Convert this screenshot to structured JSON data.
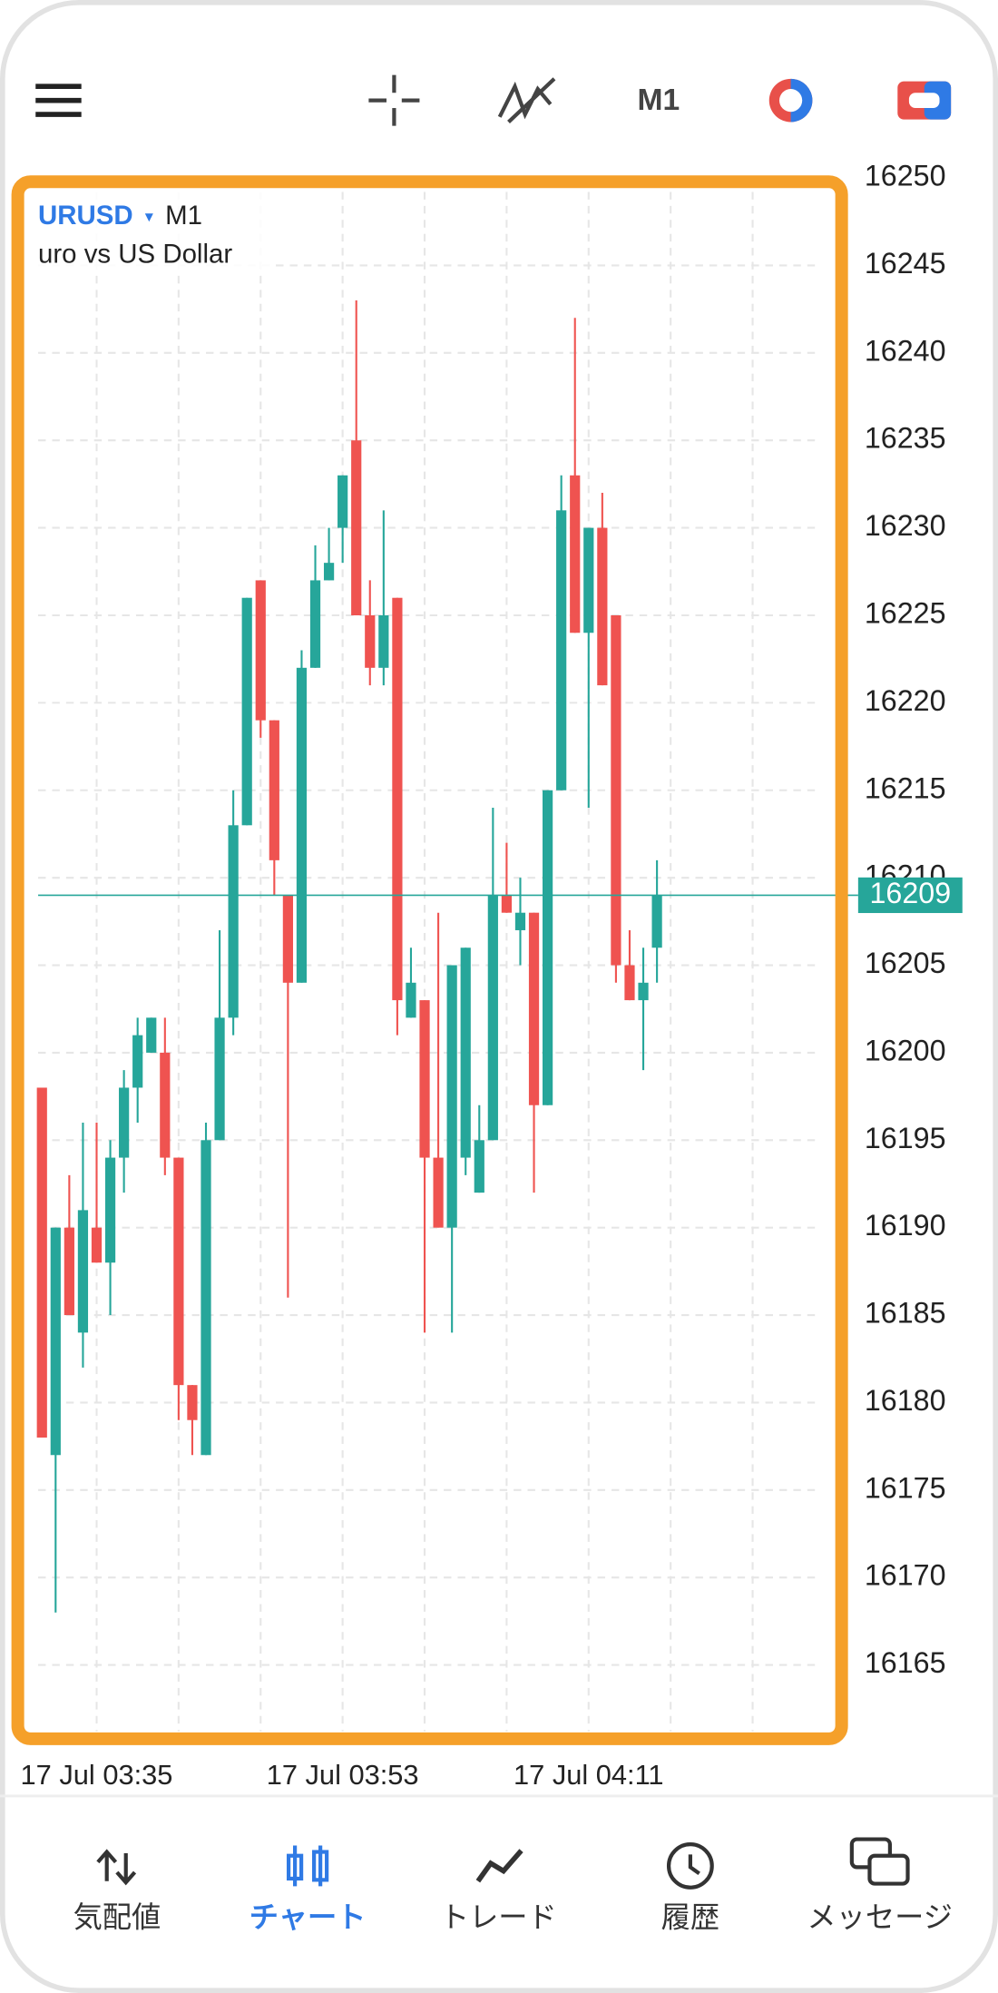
{
  "header": {
    "timeframe": "M1"
  },
  "chart_data": {
    "type": "candlestick",
    "symbol": "URUSD",
    "timeframe": "M1",
    "description": "uro vs US Dollar",
    "up_color": "#26a69a",
    "down_color": "#ef5350",
    "open": [
      16198,
      16177,
      16190,
      16184,
      16190,
      16188,
      16194,
      16198,
      16200,
      16200,
      16194,
      16181,
      16177,
      16195,
      16202,
      16213,
      16227,
      16219,
      16209,
      16204,
      16222,
      16227,
      16230,
      16235,
      16225,
      16222,
      16226,
      16202,
      16203,
      16194,
      16190,
      16194,
      16192,
      16195,
      16209,
      16207,
      16208,
      16197,
      16215,
      16233,
      16224,
      16230,
      16225,
      16205,
      16203,
      16206
    ],
    "high": [
      16198,
      16190,
      16193,
      16196,
      16196,
      16195,
      16199,
      16202,
      16202,
      16202,
      16194,
      16181,
      16196,
      16207,
      16215,
      16226,
      16227,
      16219,
      16209,
      16223,
      16229,
      16230,
      16233,
      16243,
      16227,
      16231,
      16226,
      16206,
      16203,
      16208,
      16205,
      16206,
      16197,
      16214,
      16212,
      16210,
      16208,
      16215,
      16233,
      16242,
      16230,
      16232,
      16225,
      16207,
      16206,
      16211
    ],
    "low": [
      16178,
      16168,
      16185,
      16182,
      16188,
      16185,
      16192,
      16196,
      16200,
      16193,
      16179,
      16177,
      16177,
      16195,
      16201,
      16213,
      16218,
      16209,
      16186,
      16204,
      16222,
      16227,
      16228,
      16225,
      16221,
      16221,
      16201,
      16202,
      16184,
      16190,
      16184,
      16193,
      16192,
      16195,
      16208,
      16205,
      16192,
      16197,
      16215,
      16224,
      16214,
      16221,
      16204,
      16203,
      16199,
      16204
    ],
    "close": [
      16178,
      16190,
      16185,
      16191,
      16188,
      16194,
      16198,
      16201,
      16202,
      16194,
      16181,
      16179,
      16195,
      16202,
      16213,
      16226,
      16219,
      16211,
      16204,
      16222,
      16227,
      16228,
      16233,
      16225,
      16222,
      16225,
      16203,
      16204,
      16194,
      16190,
      16205,
      16206,
      16195,
      16209,
      16208,
      16208,
      16197,
      16215,
      16231,
      16224,
      16230,
      16221,
      16205,
      16203,
      16204,
      16209
    ],
    "current_price": 16209,
    "ylim": [
      16161,
      16250
    ],
    "yticks": [
      16165,
      16170,
      16175,
      16180,
      16185,
      16190,
      16195,
      16200,
      16205,
      16210,
      16215,
      16220,
      16225,
      16230,
      16235,
      16240,
      16245,
      16250
    ],
    "xticks": [
      {
        "value": 4,
        "label": "17 Jul 03:35"
      },
      {
        "value": 22,
        "label": "17 Jul 03:53"
      },
      {
        "value": 40,
        "label": "17 Jul 04:11"
      }
    ],
    "grid": true
  },
  "nav": {
    "active": 1,
    "items": [
      "気配値",
      "チャート",
      "トレード",
      "履歴",
      "メッセージ"
    ]
  }
}
